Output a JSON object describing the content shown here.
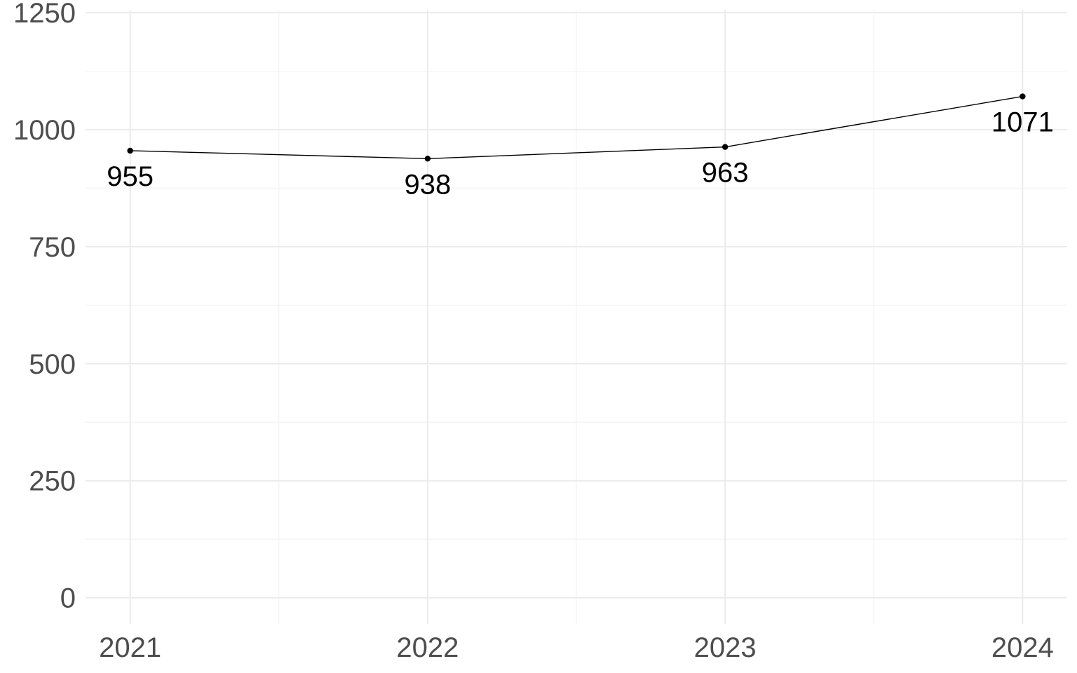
{
  "chart_data": {
    "type": "line",
    "title": "",
    "xlabel": "",
    "ylabel": "",
    "x": [
      2021,
      2022,
      2023,
      2024
    ],
    "x_tick_labels": [
      "2021",
      "2022",
      "2023",
      "2024"
    ],
    "y_tick_values": [
      0,
      250,
      500,
      750,
      1000,
      1250
    ],
    "y_tick_labels": [
      "0",
      "250",
      "500",
      "750",
      "1000",
      "1250"
    ],
    "xlim": [
      2020.85,
      2024.15
    ],
    "ylim": [
      -56,
      1256
    ],
    "grid": true,
    "legend": "none",
    "series": [
      {
        "values": [
          955,
          938,
          963,
          1071
        ],
        "labels": [
          "955",
          "938",
          "963",
          "1071"
        ],
        "color": "#000000"
      }
    ],
    "colors": {
      "grid_major": "#ebebeb",
      "grid_minor": "#f3f3f3",
      "tick_text": "#4d4d4d",
      "line": "#000000",
      "label_text": "#000000"
    }
  }
}
